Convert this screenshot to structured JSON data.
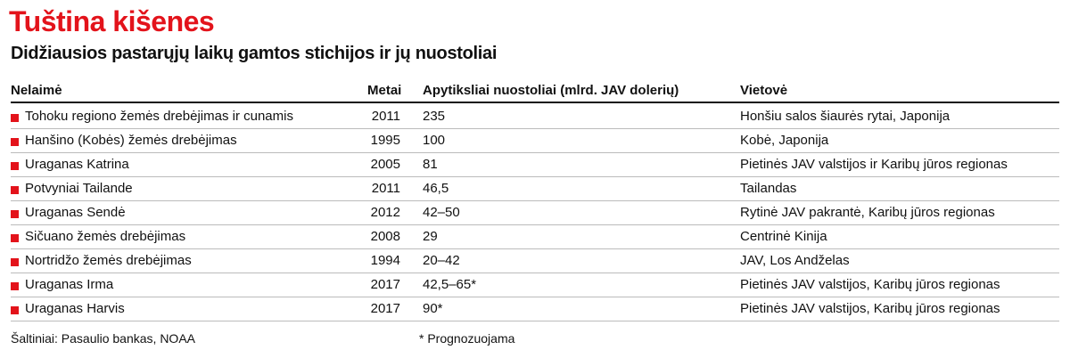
{
  "header": {
    "title": "Tuština kišenes",
    "subtitle": "Didžiausios pastarųjų laikų gamtos stichijos ir jų nuostoliai"
  },
  "table": {
    "columns": [
      "Nelaimė",
      "Metai",
      "Apytiksliai nuostoliai (mlrd. JAV dolerių)",
      "Vietovė"
    ],
    "rows": [
      [
        "Tohoku regiono žemės drebėjimas ir cunamis",
        "2011",
        "235",
        "Honšiu salos šiaurės rytai, Japonija"
      ],
      [
        "Hanšino (Kobės) žemės drebėjimas",
        "1995",
        "100",
        "Kobė, Japonija"
      ],
      [
        "Uraganas Katrina",
        "2005",
        "81",
        "Pietinės JAV valstijos ir Karibų jūros regionas"
      ],
      [
        "Potvyniai Tailande",
        "2011",
        "46,5",
        "Tailandas"
      ],
      [
        "Uraganas Sendė",
        "2012",
        "42–50",
        "Rytinė JAV pakrantė, Karibų jūros regionas"
      ],
      [
        "Sičuano žemės drebėjimas",
        "2008",
        "29",
        "Centrinė Kinija"
      ],
      [
        "Nortridžo žemės drebėjimas",
        "1994",
        "20–42",
        "JAV, Los Andželas"
      ],
      [
        "Uraganas Irma",
        "2017",
        "42,5–65*",
        "Pietinės JAV valstijos, Karibų jūros regionas"
      ],
      [
        "Uraganas Harvis",
        "2017",
        "90*",
        "Pietinės JAV valstijos, Karibų jūros regionas"
      ]
    ]
  },
  "footer": {
    "source": "Šaltiniai: Pasaulio bankas, NOAA",
    "note": "* Prognozuojama"
  }
}
